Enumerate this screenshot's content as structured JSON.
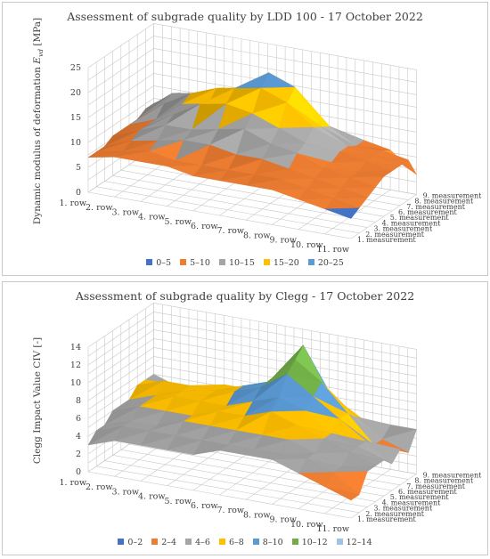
{
  "chart_data": [
    {
      "type": "surface3d",
      "title": "Assessment of subgrade quality by LDD 100 - 17 October 2022",
      "ylabel": "Dynamic modulus of deformation E_vd [MPa]",
      "ylabel_main": "Dynamic modulus of deformation ",
      "ylabel_var": "E",
      "ylabel_sub": "vd",
      "ylabel_unit": " [MPa]",
      "zlim": [
        0,
        25
      ],
      "z_ticks": [
        "0",
        "5",
        "10",
        "15",
        "20",
        "25"
      ],
      "x_categories": [
        "1. row",
        "2. row",
        "3. row",
        "4. row",
        "5. row",
        "6. row",
        "7. row",
        "8. row",
        "9. row",
        "10. row",
        "11. row"
      ],
      "y_categories": [
        "1. measurement",
        "2. measurement",
        "3. measurement",
        "4. measurement",
        "5. measurement",
        "6. measurement",
        "7. measurement",
        "8. measurement",
        "9. measurement"
      ],
      "legend": [
        {
          "label": "0–5",
          "color": "#4472c4"
        },
        {
          "label": "5–10",
          "color": "#ed7d31"
        },
        {
          "label": "10–15",
          "color": "#a5a5a5"
        },
        {
          "label": "15–20",
          "color": "#ffc000"
        },
        {
          "label": "20–25",
          "color": "#5b9bd5"
        }
      ],
      "values": [
        [
          7,
          7,
          7,
          8,
          8,
          8,
          8,
          9,
          9
        ],
        [
          8,
          8,
          9,
          10,
          10,
          10,
          12,
          13,
          12
        ],
        [
          8,
          9,
          10,
          12,
          13,
          14,
          15,
          14,
          11
        ],
        [
          8,
          8,
          11,
          12,
          16,
          15,
          17,
          16,
          11
        ],
        [
          7,
          8,
          11,
          13,
          17,
          19,
          18,
          15,
          11
        ],
        [
          7,
          8,
          10,
          14,
          16,
          20,
          22,
          16,
          11
        ],
        [
          7,
          8,
          10,
          12,
          14,
          18,
          20,
          14,
          10
        ],
        [
          7,
          8,
          9,
          11,
          12,
          14,
          13,
          12,
          9
        ],
        [
          6,
          7,
          8,
          9,
          9,
          10,
          10,
          9,
          9
        ],
        [
          5,
          6,
          7,
          8,
          8,
          9,
          9,
          9,
          8
        ],
        [
          4,
          5,
          6,
          7,
          8,
          8,
          8,
          8,
          4
        ]
      ]
    },
    {
      "type": "surface3d",
      "title": "Assessment of subgrade quality by Clegg - 17 October 2022",
      "ylabel": "Clegg Impact Value CIV [-]",
      "ylabel_main": "Clegg Impact Value CIV [-]",
      "ylabel_var": "",
      "ylabel_sub": "",
      "ylabel_unit": "",
      "zlim": [
        0,
        14
      ],
      "z_ticks": [
        "0",
        "2",
        "4",
        "6",
        "8",
        "10",
        "12",
        "14"
      ],
      "x_categories": [
        "1. row",
        "2. row",
        "3. row",
        "4. row",
        "5. row",
        "6. row",
        "7. row",
        "8. row",
        "9. row",
        "10. row",
        "11. row"
      ],
      "y_categories": [
        "1. measurement",
        "2. measurement",
        "3. measurement",
        "4. measurement",
        "5. measurement",
        "6. measurement",
        "7. measurement",
        "8. measurement",
        "9. measurement"
      ],
      "legend": [
        {
          "label": "0–2",
          "color": "#4472c4"
        },
        {
          "label": "2–4",
          "color": "#ed7d31"
        },
        {
          "label": "4–6",
          "color": "#a5a5a5"
        },
        {
          "label": "6–8",
          "color": "#ffc000"
        },
        {
          "label": "8–10",
          "color": "#5b9bd5"
        },
        {
          "label": "10–12",
          "color": "#70ad47"
        },
        {
          "label": "12–14",
          "color": "#9dc3e6"
        }
      ],
      "values": [
        [
          3,
          4,
          4,
          5,
          5,
          5,
          6,
          6,
          6
        ],
        [
          4,
          5,
          5,
          6,
          6,
          6,
          7,
          6,
          5
        ],
        [
          4,
          5,
          5,
          6,
          7,
          7,
          7,
          6,
          5
        ],
        [
          4,
          5,
          6,
          6,
          7,
          7,
          7,
          7,
          5
        ],
        [
          4,
          5,
          6,
          7,
          7,
          8,
          8,
          7,
          6
        ],
        [
          5,
          5,
          6,
          7,
          8,
          9,
          9,
          8,
          6
        ],
        [
          5,
          5,
          6,
          8,
          9,
          11,
          12,
          13,
          9
        ],
        [
          5,
          5,
          6,
          7,
          8,
          9,
          10,
          8,
          6
        ],
        [
          4,
          5,
          5,
          6,
          6,
          7,
          7,
          6,
          5
        ],
        [
          3,
          4,
          4,
          5,
          5,
          5,
          4,
          4,
          5
        ],
        [
          2,
          2,
          4,
          4,
          4,
          3,
          4,
          3,
          5
        ]
      ]
    }
  ]
}
